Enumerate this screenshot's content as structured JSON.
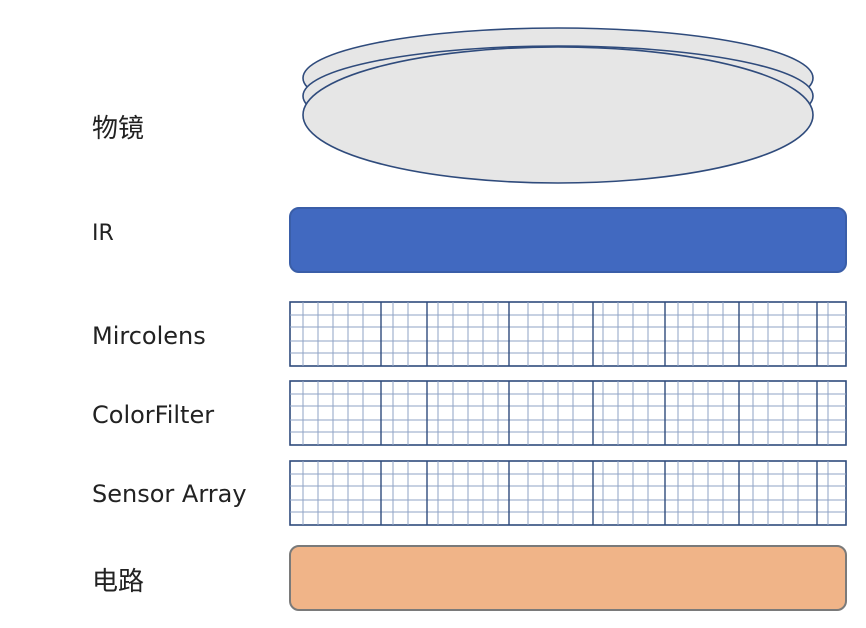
{
  "labels": {
    "lens": "物镜",
    "ir": "IR",
    "microlens": "Mircolens",
    "color_filter": "ColorFilter",
    "sensor_array": "Sensor Array",
    "circuit": "电路"
  },
  "colors": {
    "lens_fill": "#e6e6e6",
    "lens_stroke": "#2f4b7c",
    "ir_fill": "#4169c0",
    "circuit_fill": "#f0b488",
    "grid_line": "#2f4b7c",
    "grid_line_light": "#8fa3c6"
  }
}
